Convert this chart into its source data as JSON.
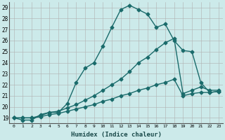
{
  "xlabel": "Humidex (Indice chaleur)",
  "bg_color": "#cceaea",
  "grid_color": "#b0b0b0",
  "line_color": "#1a6b6b",
  "xlim": [
    -0.5,
    23.5
  ],
  "ylim": [
    18.5,
    29.5
  ],
  "xtick_labels": [
    "0",
    "1",
    "2",
    "3",
    "4",
    "5",
    "6",
    "7",
    "8",
    "9",
    "10",
    "11",
    "12",
    "13",
    "14",
    "15",
    "16",
    "17",
    "18",
    "19",
    "20",
    "21",
    "22",
    "23"
  ],
  "yticks": [
    19,
    20,
    21,
    22,
    23,
    24,
    25,
    26,
    27,
    28,
    29
  ],
  "series": [
    {
      "x": [
        0,
        1,
        2,
        3,
        4,
        5,
        6,
        7,
        8,
        9,
        10,
        11,
        12,
        13,
        14,
        15,
        16,
        17,
        18,
        19,
        20,
        21,
        22,
        23
      ],
      "y": [
        19.0,
        18.8,
        18.8,
        19.3,
        19.5,
        19.5,
        20.3,
        22.2,
        23.5,
        24.0,
        25.5,
        27.2,
        28.8,
        29.2,
        28.8,
        28.4,
        27.2,
        27.5,
        26.0,
        25.1,
        25.0,
        22.2,
        21.3,
        21.4
      ],
      "marker": "D",
      "markersize": 2.5,
      "linewidth": 1.0
    },
    {
      "x": [
        0,
        1,
        2,
        3,
        4,
        5,
        6,
        7,
        8,
        9,
        10,
        11,
        12,
        13,
        14,
        15,
        16,
        17,
        18,
        19,
        20,
        21,
        22,
        23
      ],
      "y": [
        19.0,
        19.0,
        19.0,
        19.2,
        19.5,
        19.6,
        19.9,
        20.2,
        20.6,
        21.0,
        21.5,
        22.0,
        22.5,
        23.2,
        24.0,
        24.5,
        25.2,
        25.8,
        26.2,
        21.2,
        21.5,
        21.8,
        21.5,
        21.5
      ],
      "marker": "D",
      "markersize": 2.5,
      "linewidth": 1.0
    },
    {
      "x": [
        0,
        1,
        2,
        3,
        4,
        5,
        6,
        7,
        8,
        9,
        10,
        11,
        12,
        13,
        14,
        15,
        16,
        17,
        18,
        19,
        20,
        21,
        22,
        23
      ],
      "y": [
        19.0,
        19.0,
        19.0,
        19.1,
        19.3,
        19.4,
        19.6,
        19.8,
        20.0,
        20.2,
        20.5,
        20.7,
        21.0,
        21.2,
        21.5,
        21.7,
        22.0,
        22.2,
        22.5,
        21.0,
        21.2,
        21.3,
        21.3,
        21.4
      ],
      "marker": "D",
      "markersize": 2.5,
      "linewidth": 1.0
    }
  ]
}
